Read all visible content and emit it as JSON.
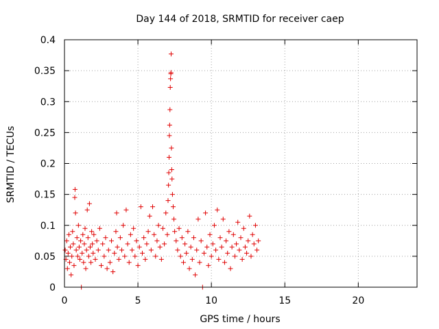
{
  "chart_data": {
    "type": "scatter",
    "title": "Day 144 of 2018, SRMTID for receiver caep",
    "xlabel": "GPS time / hours",
    "ylabel": "SRMTID / TECUs",
    "xlim": [
      0,
      24
    ],
    "ylim": [
      0,
      0.4
    ],
    "xticks": [
      0,
      5,
      10,
      15,
      20
    ],
    "xtick_labels": [
      "0",
      "5",
      "10",
      "15",
      "20"
    ],
    "yticks": [
      0,
      0.05,
      0.1,
      0.15,
      0.2,
      0.25,
      0.3,
      0.35,
      0.4
    ],
    "ytick_labels": [
      "0",
      "0.05",
      "0.1",
      "0.15",
      "0.2",
      "0.25",
      "0.3",
      "0.35",
      "0.4"
    ],
    "grid": true,
    "marker": "+",
    "marker_color": "#e00000",
    "series": [
      {
        "name": "SRMTID",
        "points": [
          [
            0.05,
            0.06
          ],
          [
            0.1,
            0.045
          ],
          [
            0.15,
            0.075
          ],
          [
            0.2,
            0.03
          ],
          [
            0.25,
            0.055
          ],
          [
            0.3,
            0.085
          ],
          [
            0.35,
            0.04
          ],
          [
            0.4,
            0.065
          ],
          [
            0.45,
            0.02
          ],
          [
            0.5,
            0.05
          ],
          [
            0.55,
            0.09
          ],
          [
            0.6,
            0.07
          ],
          [
            0.65,
            0.035
          ],
          [
            0.7,
            0.145
          ],
          [
            0.72,
            0.158
          ],
          [
            0.75,
            0.12
          ],
          [
            0.8,
            0.06
          ],
          [
            0.85,
            0.08
          ],
          [
            0.9,
            0.05
          ],
          [
            0.95,
            0.1
          ],
          [
            1.0,
            0.065
          ],
          [
            1.05,
            0.045
          ],
          [
            1.1,
            0.075
          ],
          [
            1.15,
            0.0
          ],
          [
            1.2,
            0.055
          ],
          [
            1.25,
            0.085
          ],
          [
            1.3,
            0.04
          ],
          [
            1.35,
            0.07
          ],
          [
            1.4,
            0.095
          ],
          [
            1.45,
            0.03
          ],
          [
            1.5,
            0.06
          ],
          [
            1.55,
            0.125
          ],
          [
            1.6,
            0.08
          ],
          [
            1.65,
            0.05
          ],
          [
            1.7,
            0.135
          ],
          [
            1.75,
            0.065
          ],
          [
            1.8,
            0.04
          ],
          [
            1.85,
            0.09
          ],
          [
            1.9,
            0.07
          ],
          [
            1.95,
            0.055
          ],
          [
            2.0,
            0.085
          ],
          [
            2.1,
            0.045
          ],
          [
            2.2,
            0.075
          ],
          [
            2.3,
            0.06
          ],
          [
            2.4,
            0.095
          ],
          [
            2.5,
            0.035
          ],
          [
            2.6,
            0.07
          ],
          [
            2.7,
            0.05
          ],
          [
            2.8,
            0.08
          ],
          [
            2.9,
            0.03
          ],
          [
            3.0,
            0.06
          ],
          [
            3.1,
            0.04
          ],
          [
            3.2,
            0.075
          ],
          [
            3.3,
            0.025
          ],
          [
            3.4,
            0.055
          ],
          [
            3.5,
            0.09
          ],
          [
            3.55,
            0.12
          ],
          [
            3.6,
            0.065
          ],
          [
            3.7,
            0.045
          ],
          [
            3.8,
            0.08
          ],
          [
            3.9,
            0.06
          ],
          [
            4.0,
            0.1
          ],
          [
            4.1,
            0.05
          ],
          [
            4.2,
            0.125
          ],
          [
            4.3,
            0.07
          ],
          [
            4.4,
            0.04
          ],
          [
            4.5,
            0.085
          ],
          [
            4.6,
            0.06
          ],
          [
            4.7,
            0.095
          ],
          [
            4.8,
            0.05
          ],
          [
            4.9,
            0.075
          ],
          [
            5.0,
            0.035
          ],
          [
            5.1,
            0.065
          ],
          [
            5.2,
            0.13
          ],
          [
            5.3,
            0.055
          ],
          [
            5.4,
            0.08
          ],
          [
            5.5,
            0.045
          ],
          [
            5.6,
            0.07
          ],
          [
            5.7,
            0.09
          ],
          [
            5.8,
            0.115
          ],
          [
            5.9,
            0.06
          ],
          [
            6.0,
            0.13
          ],
          [
            6.1,
            0.085
          ],
          [
            6.2,
            0.05
          ],
          [
            6.3,
            0.075
          ],
          [
            6.4,
            0.1
          ],
          [
            6.5,
            0.065
          ],
          [
            6.6,
            0.045
          ],
          [
            6.7,
            0.095
          ],
          [
            6.8,
            0.07
          ],
          [
            6.9,
            0.12
          ],
          [
            7.0,
            0.085
          ],
          [
            7.05,
            0.14
          ],
          [
            7.08,
            0.165
          ],
          [
            7.1,
            0.185
          ],
          [
            7.12,
            0.21
          ],
          [
            7.14,
            0.245
          ],
          [
            7.16,
            0.262
          ],
          [
            7.18,
            0.287
          ],
          [
            7.2,
            0.323
          ],
          [
            7.22,
            0.337
          ],
          [
            7.24,
            0.345
          ],
          [
            7.25,
            0.347
          ],
          [
            7.26,
            0.377
          ],
          [
            7.28,
            0.225
          ],
          [
            7.3,
            0.19
          ],
          [
            7.32,
            0.175
          ],
          [
            7.35,
            0.15
          ],
          [
            7.4,
            0.13
          ],
          [
            7.45,
            0.11
          ],
          [
            7.5,
            0.09
          ],
          [
            7.6,
            0.075
          ],
          [
            7.7,
            0.06
          ],
          [
            7.8,
            0.095
          ],
          [
            7.9,
            0.05
          ],
          [
            8.0,
            0.08
          ],
          [
            8.1,
            0.04
          ],
          [
            8.2,
            0.07
          ],
          [
            8.3,
            0.055
          ],
          [
            8.4,
            0.09
          ],
          [
            8.5,
            0.03
          ],
          [
            8.6,
            0.065
          ],
          [
            8.7,
            0.045
          ],
          [
            8.8,
            0.08
          ],
          [
            8.9,
            0.02
          ],
          [
            9.0,
            0.06
          ],
          [
            9.1,
            0.11
          ],
          [
            9.2,
            0.04
          ],
          [
            9.3,
            0.075
          ],
          [
            9.4,
            0.0
          ],
          [
            9.5,
            0.055
          ],
          [
            9.6,
            0.12
          ],
          [
            9.7,
            0.065
          ],
          [
            9.8,
            0.035
          ],
          [
            9.9,
            0.085
          ],
          [
            10.0,
            0.05
          ],
          [
            10.1,
            0.07
          ],
          [
            10.2,
            0.1
          ],
          [
            10.3,
            0.06
          ],
          [
            10.4,
            0.125
          ],
          [
            10.5,
            0.045
          ],
          [
            10.6,
            0.08
          ],
          [
            10.7,
            0.065
          ],
          [
            10.8,
            0.11
          ],
          [
            10.9,
            0.04
          ],
          [
            11.0,
            0.075
          ],
          [
            11.1,
            0.055
          ],
          [
            11.2,
            0.09
          ],
          [
            11.3,
            0.03
          ],
          [
            11.4,
            0.065
          ],
          [
            11.5,
            0.085
          ],
          [
            11.6,
            0.05
          ],
          [
            11.7,
            0.07
          ],
          [
            11.8,
            0.105
          ],
          [
            11.9,
            0.06
          ],
          [
            12.0,
            0.08
          ],
          [
            12.1,
            0.045
          ],
          [
            12.2,
            0.095
          ],
          [
            12.3,
            0.065
          ],
          [
            12.4,
            0.055
          ],
          [
            12.5,
            0.075
          ],
          [
            12.6,
            0.115
          ],
          [
            12.7,
            0.05
          ],
          [
            12.8,
            0.085
          ],
          [
            12.9,
            0.07
          ],
          [
            13.0,
            0.1
          ],
          [
            13.1,
            0.06
          ],
          [
            13.2,
            0.075
          ]
        ]
      }
    ]
  }
}
